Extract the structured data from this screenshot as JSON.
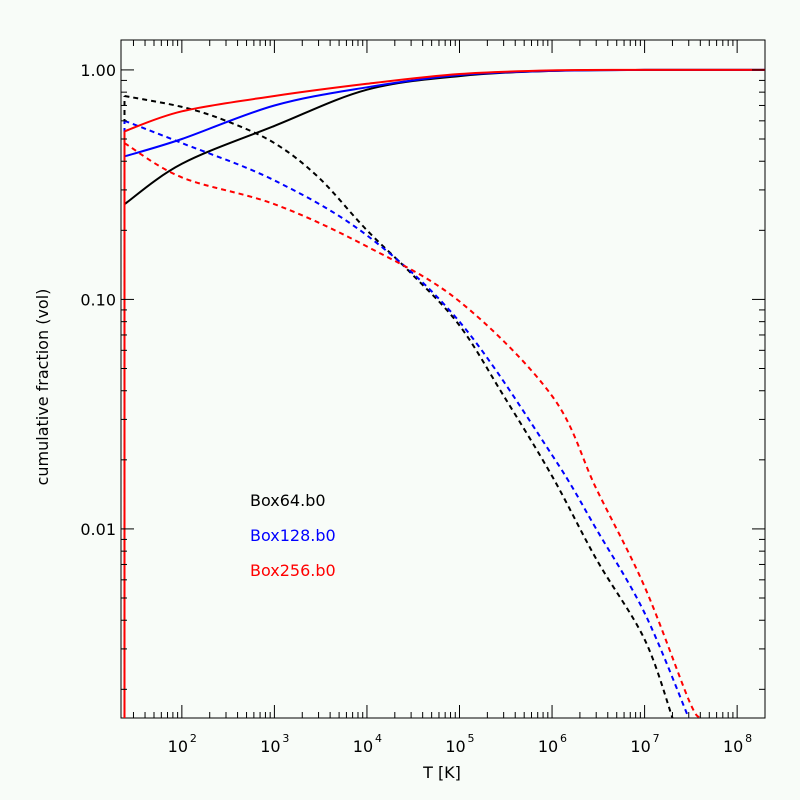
{
  "chart_data": {
    "type": "line",
    "title": "",
    "xlabel": "T [K]",
    "ylabel": "cumulative fraction (vol)",
    "x_scale": "log",
    "y_scale": "log",
    "xlim": [
      22,
      200000000
    ],
    "ylim": [
      0.0015,
      1.35
    ],
    "x_ticks": [
      {
        "base": "10",
        "exp": "2",
        "value": 100
      },
      {
        "base": "10",
        "exp": "3",
        "value": 1000
      },
      {
        "base": "10",
        "exp": "4",
        "value": 10000
      },
      {
        "base": "10",
        "exp": "5",
        "value": 100000
      },
      {
        "base": "10",
        "exp": "6",
        "value": 1000000
      },
      {
        "base": "10",
        "exp": "7",
        "value": 10000000
      },
      {
        "base": "10",
        "exp": "8",
        "value": 100000000
      }
    ],
    "y_ticks": [
      {
        "label": "1.00",
        "value": 1.0
      },
      {
        "label": "0.10",
        "value": 0.1
      },
      {
        "label": "0.01",
        "value": 0.01
      }
    ],
    "grid": false,
    "legend_position": "lower-left",
    "series": [
      {
        "name": "Box64.b0",
        "color": "#000000",
        "curves": [
          {
            "style": "solid",
            "points": [
              [
                24,
                0.26
              ],
              [
                100,
                0.39
              ],
              [
                1000,
                0.57
              ],
              [
                10000,
                0.82
              ],
              [
                100000,
                0.94
              ],
              [
                1000000,
                0.99
              ],
              [
                10000000,
                1.0
              ],
              [
                200000000,
                1.0
              ]
            ]
          },
          {
            "style": "dashed",
            "points": [
              [
                24,
                0.77
              ],
              [
                100,
                0.69
              ],
              [
                300,
                0.6
              ],
              [
                1000,
                0.48
              ],
              [
                3000,
                0.34
              ],
              [
                10000,
                0.2
              ],
              [
                30000,
                0.13
              ],
              [
                100000,
                0.077
              ],
              [
                300000,
                0.038
              ],
              [
                1000000,
                0.017
              ],
              [
                3000000,
                0.0074
              ],
              [
                10000000,
                0.0033
              ],
              [
                20000000,
                0.0015
              ]
            ]
          }
        ]
      },
      {
        "name": "Box128.b0",
        "color": "#0000ff",
        "curves": [
          {
            "style": "solid",
            "points": [
              [
                24,
                0.42
              ],
              [
                100,
                0.5
              ],
              [
                1000,
                0.7
              ],
              [
                10000,
                0.84
              ],
              [
                100000,
                0.95
              ],
              [
                1000000,
                0.99
              ],
              [
                10000000,
                1.0
              ],
              [
                200000000,
                1.0
              ]
            ]
          },
          {
            "style": "dashed",
            "points": [
              [
                24,
                0.6
              ],
              [
                100,
                0.48
              ],
              [
                1000,
                0.33
              ],
              [
                10000,
                0.19
              ],
              [
                100000,
                0.08
              ],
              [
                1000000,
                0.021
              ],
              [
                3000000,
                0.01
              ],
              [
                10000000,
                0.0043
              ],
              [
                30000000,
                0.0015
              ]
            ]
          }
        ]
      },
      {
        "name": "Box256.b0",
        "color": "#ff0000",
        "curves": [
          {
            "style": "solid",
            "points": [
              [
                24,
                0.54
              ],
              [
                100,
                0.66
              ],
              [
                1000,
                0.77
              ],
              [
                10000,
                0.87
              ],
              [
                100000,
                0.96
              ],
              [
                1000000,
                0.995
              ],
              [
                10000000,
                1.0
              ],
              [
                200000000,
                1.0
              ]
            ]
          },
          {
            "style": "dashed",
            "points": [
              [
                24,
                0.48
              ],
              [
                100,
                0.34
              ],
              [
                1000,
                0.26
              ],
              [
                10000,
                0.17
              ],
              [
                100000,
                0.098
              ],
              [
                1000000,
                0.038
              ],
              [
                3000000,
                0.015
              ],
              [
                10000000,
                0.0056
              ],
              [
                30000000,
                0.0018
              ],
              [
                40000000,
                0.0015
              ]
            ]
          }
        ]
      }
    ]
  }
}
